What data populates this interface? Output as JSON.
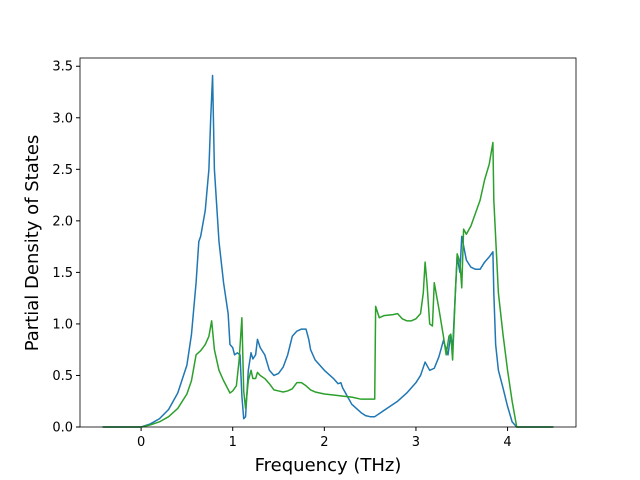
{
  "chart_data": {
    "type": "line",
    "xlabel": "Frequency (THz)",
    "ylabel": "Partial Density of States",
    "xlim": [
      -0.667,
      4.747
    ],
    "ylim": [
      0,
      3.58
    ],
    "xticks": [
      0,
      1,
      2,
      3,
      4
    ],
    "yticks": [
      {
        "value": 0,
        "label": "0.0"
      },
      0.5,
      {
        "value": 1,
        "label": "1.0"
      },
      1.5,
      {
        "value": 2,
        "label": "2.0"
      },
      2.5,
      {
        "value": 3,
        "label": "3.0"
      },
      3.5
    ],
    "series": [
      {
        "color": "#1f77b4",
        "x": [
          -0.42,
          0,
          0.1,
          0.2,
          0.3,
          0.4,
          0.5,
          0.55,
          0.6,
          0.63,
          0.65,
          0.7,
          0.74,
          0.76,
          0.78,
          0.8,
          0.85,
          0.9,
          0.95,
          0.97,
          1.0,
          1.02,
          1.05,
          1.08,
          1.1,
          1.12,
          1.14,
          1.17,
          1.2,
          1.22,
          1.25,
          1.27,
          1.3,
          1.35,
          1.4,
          1.45,
          1.5,
          1.55,
          1.6,
          1.65,
          1.7,
          1.75,
          1.8,
          1.83,
          1.85,
          1.9,
          2.0,
          2.1,
          2.15,
          2.18,
          2.2,
          2.25,
          2.3,
          2.4,
          2.45,
          2.5,
          2.55,
          2.6,
          2.7,
          2.8,
          2.9,
          3.0,
          3.05,
          3.1,
          3.15,
          3.2,
          3.25,
          3.3,
          3.35,
          3.38,
          3.4,
          3.43,
          3.45,
          3.48,
          3.5,
          3.55,
          3.6,
          3.65,
          3.7,
          3.75,
          3.8,
          3.84,
          3.85,
          3.87,
          3.9,
          3.95,
          4.0,
          4.05,
          4.1,
          4.5
        ],
        "values": [
          0,
          0,
          0.03,
          0.08,
          0.17,
          0.33,
          0.6,
          0.9,
          1.4,
          1.8,
          1.85,
          2.1,
          2.5,
          3.0,
          3.41,
          2.5,
          1.8,
          1.4,
          1.1,
          0.8,
          0.77,
          0.7,
          0.72,
          0.7,
          0.3,
          0.08,
          0.1,
          0.55,
          0.72,
          0.66,
          0.7,
          0.85,
          0.77,
          0.7,
          0.55,
          0.5,
          0.52,
          0.58,
          0.7,
          0.88,
          0.93,
          0.95,
          0.95,
          0.85,
          0.75,
          0.65,
          0.55,
          0.47,
          0.42,
          0.43,
          0.38,
          0.3,
          0.22,
          0.14,
          0.11,
          0.1,
          0.1,
          0.13,
          0.19,
          0.25,
          0.33,
          0.43,
          0.5,
          0.63,
          0.55,
          0.57,
          0.68,
          0.84,
          0.7,
          0.9,
          0.75,
          1.3,
          1.65,
          1.5,
          1.85,
          1.62,
          1.55,
          1.53,
          1.53,
          1.6,
          1.65,
          1.7,
          1.3,
          0.8,
          0.55,
          0.38,
          0.2,
          0.05,
          0,
          0
        ]
      },
      {
        "color": "#2ca02c",
        "x": [
          -0.42,
          0,
          0.1,
          0.2,
          0.3,
          0.4,
          0.5,
          0.55,
          0.6,
          0.65,
          0.7,
          0.74,
          0.77,
          0.8,
          0.85,
          0.9,
          0.97,
          1.0,
          1.04,
          1.07,
          1.1,
          1.12,
          1.14,
          1.17,
          1.2,
          1.22,
          1.25,
          1.27,
          1.3,
          1.35,
          1.4,
          1.45,
          1.5,
          1.55,
          1.6,
          1.65,
          1.7,
          1.75,
          1.8,
          1.85,
          1.9,
          2.0,
          2.1,
          2.2,
          2.3,
          2.4,
          2.5,
          2.55,
          2.56,
          2.6,
          2.65,
          2.75,
          2.8,
          2.85,
          2.9,
          2.95,
          3.0,
          3.05,
          3.08,
          3.1,
          3.12,
          3.15,
          3.18,
          3.2,
          3.25,
          3.3,
          3.33,
          3.36,
          3.38,
          3.4,
          3.43,
          3.45,
          3.48,
          3.5,
          3.52,
          3.55,
          3.6,
          3.7,
          3.75,
          3.8,
          3.84,
          3.85,
          3.9,
          3.95,
          4.0,
          4.05,
          4.1,
          4.5
        ],
        "values": [
          0,
          0,
          0.02,
          0.05,
          0.1,
          0.18,
          0.32,
          0.45,
          0.7,
          0.74,
          0.8,
          0.88,
          1.03,
          0.75,
          0.55,
          0.45,
          0.33,
          0.35,
          0.4,
          0.65,
          1.06,
          0.35,
          0.18,
          0.45,
          0.55,
          0.47,
          0.47,
          0.53,
          0.5,
          0.47,
          0.42,
          0.36,
          0.35,
          0.34,
          0.35,
          0.37,
          0.43,
          0.43,
          0.4,
          0.36,
          0.34,
          0.32,
          0.31,
          0.3,
          0.29,
          0.27,
          0.27,
          0.27,
          1.17,
          1.06,
          1.08,
          1.09,
          1.1,
          1.05,
          1.03,
          1.03,
          1.05,
          1.1,
          1.3,
          1.6,
          1.4,
          1.0,
          0.98,
          1.4,
          1.15,
          0.88,
          0.7,
          0.88,
          0.9,
          0.65,
          1.3,
          1.68,
          1.6,
          1.35,
          1.92,
          1.87,
          1.95,
          2.2,
          2.4,
          2.55,
          2.76,
          2.2,
          1.3,
          0.9,
          0.55,
          0.25,
          0,
          0
        ]
      }
    ]
  }
}
